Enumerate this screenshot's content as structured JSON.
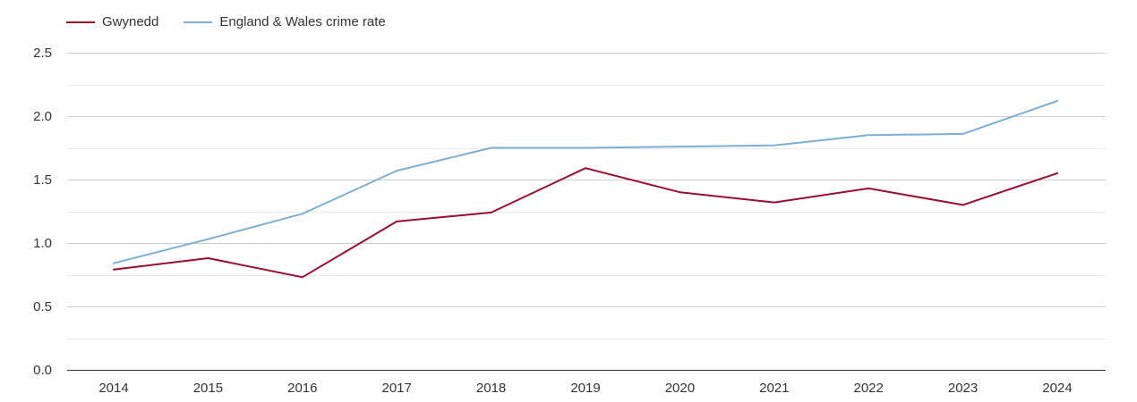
{
  "chart_data": {
    "type": "line",
    "title": "",
    "xlabel": "",
    "ylabel": "",
    "categories": [
      "2014",
      "2015",
      "2016",
      "2017",
      "2018",
      "2019",
      "2020",
      "2021",
      "2022",
      "2023",
      "2024"
    ],
    "ylim": [
      0,
      2.5
    ],
    "yticks": [
      "0.0",
      "0.5",
      "1.0",
      "1.5",
      "2.0",
      "2.5"
    ],
    "grid": true,
    "legend_position": "top-left",
    "series": [
      {
        "name": "Gwynedd",
        "color": "#9b0d2e",
        "values": [
          0.79,
          0.88,
          0.73,
          1.17,
          1.24,
          1.59,
          1.4,
          1.32,
          1.43,
          1.3,
          1.55
        ]
      },
      {
        "name": "England & Wales crime rate",
        "color": "#7bafd4",
        "values": [
          0.84,
          1.03,
          1.23,
          1.57,
          1.75,
          1.75,
          1.76,
          1.77,
          1.85,
          1.86,
          2.12
        ]
      }
    ]
  }
}
